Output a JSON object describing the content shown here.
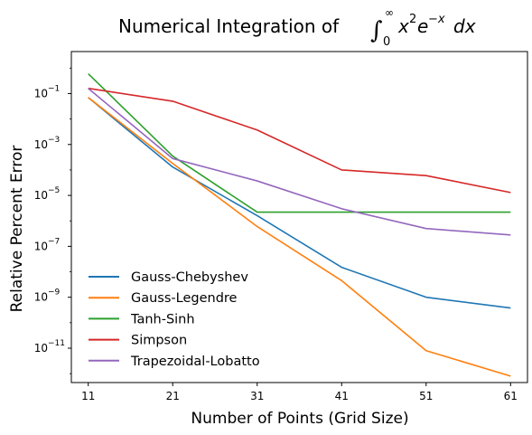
{
  "chart_data": {
    "type": "line",
    "title": "Numerical Integration of ∫₀^∞ x²e⁻ˣdx",
    "title_parts": {
      "prefix": "Numerical Integration of ",
      "integral": "∫",
      "upper": "∞",
      "lower": "0",
      "body_x": "x",
      "exp_2": "2",
      "body_e": "e",
      "exp_x": "−x",
      "dx": "dx"
    },
    "xlabel": "Number of Points (Grid Size)",
    "ylabel": "Relative Percent Error",
    "x": [
      11,
      21,
      31,
      41,
      51,
      61
    ],
    "xlim": [
      9,
      63
    ],
    "ylim_log10": [
      -12.35,
      0.65
    ],
    "y_scale": "log",
    "x_ticks": [
      "11",
      "21",
      "31",
      "41",
      "51",
      "61"
    ],
    "y_ticks": [
      {
        "base": "10",
        "exp": "−11",
        "log": -11
      },
      {
        "base": "10",
        "exp": "−9",
        "log": -9
      },
      {
        "base": "10",
        "exp": "−7",
        "log": -7
      },
      {
        "base": "10",
        "exp": "−5",
        "log": -5
      },
      {
        "base": "10",
        "exp": "−3",
        "log": -3
      },
      {
        "base": "10",
        "exp": "−1",
        "log": -1
      }
    ],
    "grid": false,
    "legend_position": "lower-left",
    "series": [
      {
        "name": "Gauss-Chebyshev",
        "color": "#1f77b4",
        "values": [
          0.07,
          0.00013,
          1.6e-06,
          1.5e-08,
          1e-09,
          3.8e-10
        ]
      },
      {
        "name": "Gauss-Legendre",
        "color": "#ff7f0e",
        "values": [
          0.07,
          0.00018,
          6e-07,
          4.5e-09,
          8e-12,
          8e-13
        ]
      },
      {
        "name": "Tanh-Sinh",
        "color": "#2ca02c",
        "values": [
          0.6,
          0.00035,
          2.2e-06,
          2.2e-06,
          2.2e-06,
          2.2e-06
        ]
      },
      {
        "name": "Simpson",
        "color": "#d62728",
        "values": [
          0.16,
          0.05,
          0.0037,
          0.0001,
          6e-05,
          1.3e-05
        ]
      },
      {
        "name": "Trapezoidal-Lobatto",
        "color": "#9467bd",
        "values": [
          0.16,
          0.00028,
          3.7e-05,
          3e-06,
          5e-07,
          2.8e-07
        ]
      }
    ]
  }
}
